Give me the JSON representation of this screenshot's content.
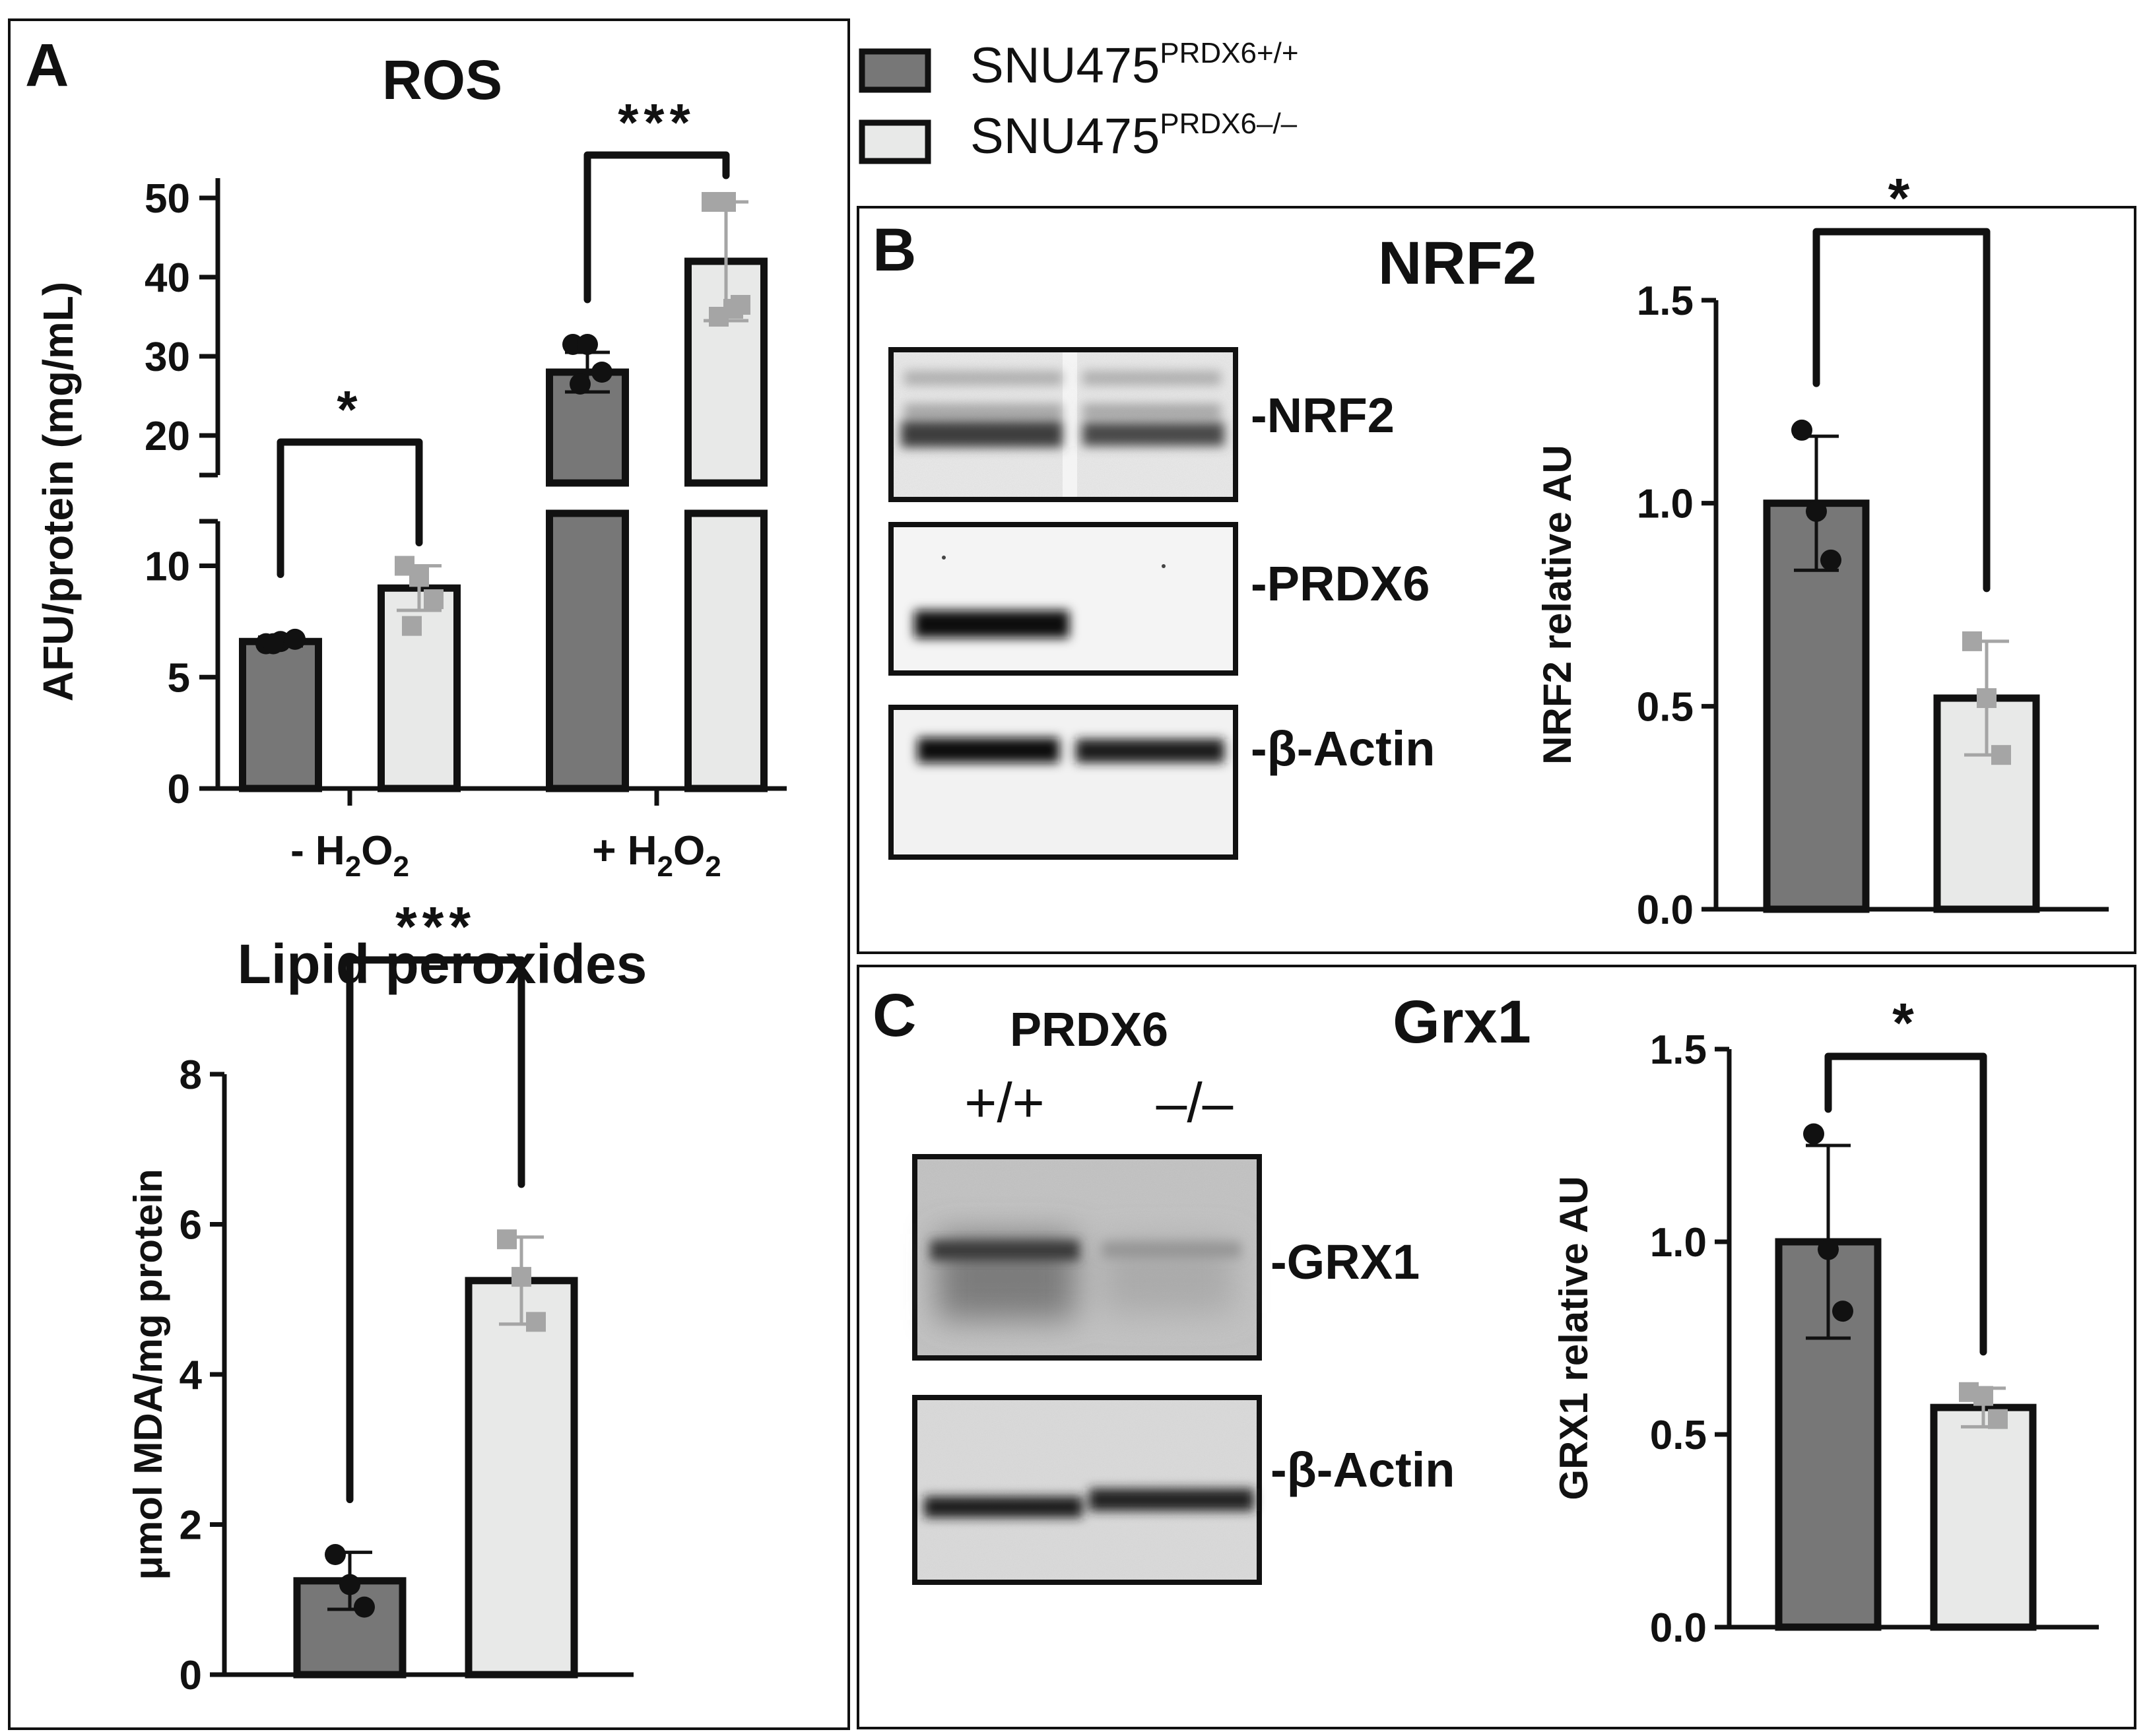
{
  "legend": {
    "items": [
      {
        "label": "SNU475",
        "sup": "PRDX6+/+",
        "color": "#777777"
      },
      {
        "label": "SNU475",
        "sup": "PRDX6–/–",
        "color": "#e8e9e8"
      }
    ]
  },
  "panels": {
    "A": {
      "letter": "A"
    },
    "B": {
      "letter": "B",
      "title": "NRF2",
      "blot_labels": [
        "-NRF2",
        "-PRDX6",
        "-β-Actin"
      ]
    },
    "C": {
      "letter": "C",
      "title": "Grx1",
      "blot_header": "PRDX6",
      "lane_labels": [
        "+/+",
        "–/–"
      ],
      "blot_labels": [
        "-GRX1",
        "-β-Actin"
      ]
    }
  },
  "colors": {
    "wt_bar": "#777777",
    "ko_bar": "#e8e9e8",
    "wt_point": "#111111",
    "ko_point": "#a5a5a5",
    "ko_error": "#a5a5a5",
    "outline": "#111111"
  },
  "chart_data": [
    {
      "id": "ros",
      "type": "bar",
      "title": "ROS",
      "ylabel": "AFU/protein (mg/mL)",
      "xlabel": "",
      "categories": [
        "- H2O2",
        "+ H2O2"
      ],
      "category_labels": [
        {
          "pre": "- H",
          "sub1": "2",
          "mid": "O",
          "sub2": "2"
        },
        {
          "pre": "+ H",
          "sub1": "2",
          "mid": "O",
          "sub2": "2"
        }
      ],
      "broken_axis": true,
      "segments": [
        {
          "ylim": [
            0,
            12
          ],
          "ticks": [
            0,
            5,
            10
          ]
        },
        {
          "ylim": [
            15,
            50
          ],
          "ticks": [
            20,
            30,
            40,
            50
          ]
        }
      ],
      "series": [
        {
          "name": "SNU475 PRDX6+/+",
          "values": [
            6.6,
            28
          ],
          "errors": [
            0.2,
            2.5
          ],
          "points": [
            [
              6.5,
              6.6,
              6.7,
              6.5
            ],
            [
              31.5,
              31.5,
              28,
              26.5
            ]
          ]
        },
        {
          "name": "SNU475 PRDX6–/–",
          "values": [
            9.0,
            42
          ],
          "errors": [
            1.0,
            7.5
          ],
          "points": [
            [
              10,
              9.5,
              8.5,
              7.3
            ],
            [
              49.5,
              49.5,
              36.5,
              35,
              36
            ]
          ]
        }
      ],
      "significance": [
        {
          "category": 0,
          "label": "*"
        },
        {
          "category": 1,
          "label": "***"
        }
      ]
    },
    {
      "id": "lipid",
      "type": "bar",
      "title": "Lipid peroxides",
      "ylabel": "μmol MDA/mg protein",
      "categories": [
        "PRDX6+/+",
        "PRDX6–/–"
      ],
      "ylim": [
        0,
        8
      ],
      "ticks": [
        0,
        2,
        4,
        6,
        8
      ],
      "values": [
        1.25,
        5.25
      ],
      "errors": [
        0.38,
        0.58
      ],
      "points": [
        [
          1.6,
          1.2,
          0.9
        ],
        [
          5.8,
          5.3,
          4.7
        ]
      ],
      "significance": "***"
    },
    {
      "id": "nrf2",
      "type": "bar",
      "ylabel": "NRF2 relative AU",
      "categories": [
        "PRDX6+/+",
        "PRDX6–/–"
      ],
      "ylim": [
        0,
        1.5
      ],
      "ticks": [
        0.0,
        0.5,
        1.0,
        1.5
      ],
      "tick_labels": [
        "0.0",
        "0.5",
        "1.0",
        "1.5"
      ],
      "values": [
        1.0,
        0.52
      ],
      "errors": [
        0.165,
        0.14
      ],
      "points": [
        [
          1.18,
          0.98,
          0.86
        ],
        [
          0.66,
          0.52,
          0.38
        ]
      ],
      "significance": "*"
    },
    {
      "id": "grx1",
      "type": "bar",
      "ylabel": "GRX1 relative AU",
      "categories": [
        "PRDX6+/+",
        "PRDX6–/–"
      ],
      "ylim": [
        0,
        1.5
      ],
      "ticks": [
        0.0,
        0.5,
        1.0,
        1.5
      ],
      "tick_labels": [
        "0.0",
        "0.5",
        "1.0",
        "1.5"
      ],
      "values": [
        1.0,
        0.57
      ],
      "errors": [
        0.25,
        0.05
      ],
      "points": [
        [
          1.28,
          0.98,
          0.82
        ],
        [
          0.61,
          0.6,
          0.54
        ]
      ],
      "significance": "*"
    }
  ]
}
